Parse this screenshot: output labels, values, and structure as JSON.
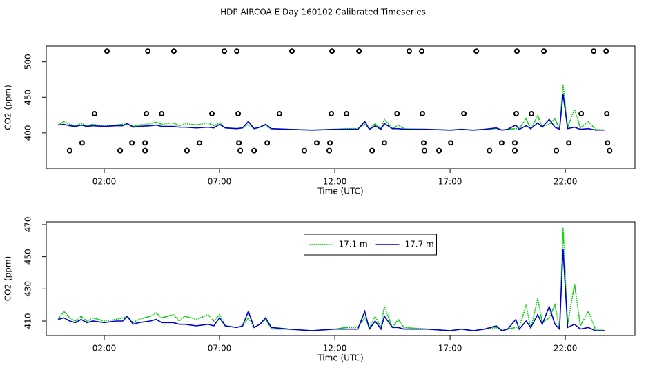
{
  "title": "HDP AIRCOA E  Day 160102  Calibrated Timeseries",
  "chart_data": [
    {
      "type": "line",
      "y_label": "CO2 (ppm)",
      "x_label": "Time (UTC)",
      "xlim": [
        -0.515,
        25.02
      ],
      "ylim": [
        349.5,
        522
      ],
      "xticks": [
        {
          "value": 2,
          "label": "02:00"
        },
        {
          "value": 7,
          "label": "07:00"
        },
        {
          "value": 12,
          "label": "12:00"
        },
        {
          "value": 17,
          "label": "17:00"
        },
        {
          "value": 22,
          "label": "22:00"
        }
      ],
      "yticks": [
        400,
        450,
        500
      ],
      "x": [
        0.0,
        0.25,
        0.5,
        0.75,
        1.0,
        1.25,
        1.5,
        2.0,
        2.5,
        2.8,
        3.0,
        3.25,
        3.5,
        4.0,
        4.25,
        4.5,
        5.0,
        5.25,
        5.5,
        6.0,
        6.5,
        6.75,
        7.0,
        7.25,
        7.75,
        8.0,
        8.25,
        8.5,
        8.75,
        9.0,
        9.25,
        10.0,
        11.0,
        12.0,
        12.5,
        13.0,
        13.3,
        13.5,
        13.75,
        14.0,
        14.15,
        14.5,
        14.75,
        15.0,
        16.0,
        17.0,
        17.5,
        18.0,
        18.5,
        19.0,
        19.25,
        19.5,
        19.85,
        20.0,
        20.3,
        20.5,
        20.8,
        21.0,
        21.3,
        21.55,
        21.75,
        21.9,
        22.1,
        22.4,
        22.65,
        23.0,
        23.3,
        23.7
      ],
      "series": [
        {
          "type": "line",
          "color": "#00cc00",
          "linestyle": "dotted",
          "values": [
            411,
            416,
            412,
            410,
            413,
            410,
            412,
            410,
            411,
            412,
            413,
            409,
            411,
            413,
            415,
            412,
            414,
            410,
            413,
            411,
            414,
            410,
            414,
            407,
            406,
            407,
            412,
            406,
            408,
            411,
            405,
            405,
            404,
            405,
            406,
            406,
            412,
            406,
            413,
            406,
            419,
            406,
            411,
            406,
            405,
            404,
            405,
            404,
            405,
            406,
            404,
            405,
            406,
            406,
            420,
            405,
            424,
            409,
            412,
            420,
            405,
            468,
            408,
            433,
            407,
            416,
            405,
            404
          ]
        },
        {
          "type": "line",
          "color": "#0000cc",
          "linestyle": "solid",
          "values": [
            411,
            412,
            410,
            409,
            411,
            409,
            410,
            409,
            410,
            410,
            413,
            408,
            409,
            410,
            411,
            409,
            409,
            408,
            408,
            407,
            408,
            407,
            412,
            407,
            406,
            407,
            416,
            406,
            408,
            412,
            406,
            405,
            404,
            405,
            405,
            405,
            416,
            405,
            410,
            405,
            413,
            406,
            406,
            405,
            405,
            404,
            405,
            404,
            405,
            407,
            404,
            405,
            411,
            405,
            410,
            406,
            414,
            408,
            419,
            408,
            405,
            455,
            406,
            408,
            405,
            406,
            404,
            404
          ]
        },
        {
          "type": "scatter",
          "color": "#000000",
          "x": [
            2.12,
            3.89,
            5.02,
            7.21,
            7.75,
            10.14,
            11.88,
            13.05,
            15.23,
            15.77,
            18.14,
            19.9,
            21.07,
            23.23,
            23.77,
            1.58,
            3.83,
            4.49,
            6.67,
            7.81,
            9.6,
            11.85,
            12.51,
            14.7,
            15.8,
            17.6,
            19.87,
            20.53,
            22.69,
            23.8,
            1.04,
            3.2,
            3.77,
            6.13,
            7.84,
            9.07,
            11.22,
            11.79,
            14.15,
            15.86,
            17.03,
            19.24,
            19.81,
            22.15,
            23.83,
            0.5,
            2.69,
            3.77,
            5.59,
            7.9,
            8.5,
            10.68,
            11.76,
            13.62,
            15.89,
            16.52,
            18.71,
            19.81,
            21.61,
            23.92
          ],
          "values": [
            515,
            515,
            515,
            515,
            515,
            515,
            515,
            515,
            515,
            515,
            515,
            515,
            515,
            515,
            515,
            427,
            427,
            427,
            427,
            427,
            427,
            427,
            427,
            427,
            427,
            427,
            427,
            427,
            427,
            427,
            386,
            386,
            386,
            386,
            386,
            386,
            386,
            386,
            386,
            386,
            386,
            386,
            386,
            386,
            386,
            375,
            375,
            375,
            375,
            375,
            375,
            375,
            375,
            375,
            375,
            375,
            375,
            375,
            375,
            375
          ]
        }
      ]
    },
    {
      "type": "line",
      "y_label": "CO2 (ppm)",
      "x_label": "Time (UTC)",
      "legend": "top",
      "xlim": [
        -0.515,
        25.02
      ],
      "ylim": [
        401,
        471.7
      ],
      "xticks": [
        {
          "value": 2,
          "label": "02:00"
        },
        {
          "value": 7,
          "label": "07:00"
        },
        {
          "value": 12,
          "label": "12:00"
        },
        {
          "value": 17,
          "label": "17:00"
        },
        {
          "value": 22,
          "label": "22:00"
        }
      ],
      "yticks": [
        410,
        430,
        450,
        470
      ],
      "x": [
        0.0,
        0.25,
        0.5,
        0.75,
        1.0,
        1.25,
        1.5,
        2.0,
        2.5,
        2.8,
        3.0,
        3.25,
        3.5,
        4.0,
        4.25,
        4.5,
        5.0,
        5.25,
        5.5,
        6.0,
        6.5,
        6.75,
        7.0,
        7.25,
        7.75,
        8.0,
        8.25,
        8.5,
        8.75,
        9.0,
        9.25,
        10.0,
        11.0,
        12.0,
        12.5,
        13.0,
        13.3,
        13.5,
        13.75,
        14.0,
        14.15,
        14.5,
        14.75,
        15.0,
        16.0,
        17.0,
        17.5,
        18.0,
        18.5,
        19.0,
        19.25,
        19.5,
        19.85,
        20.0,
        20.3,
        20.5,
        20.8,
        21.0,
        21.3,
        21.55,
        21.75,
        21.9,
        22.1,
        22.4,
        22.65,
        23.0,
        23.3,
        23.7
      ],
      "series": [
        {
          "type": "line",
          "name": "17.1 m",
          "color": "#00cc00",
          "linestyle": "dotted",
          "values": [
            411,
            416,
            412,
            410,
            413,
            410,
            412,
            410,
            411,
            412,
            413,
            409,
            411,
            413,
            415,
            412,
            414,
            410,
            413,
            411,
            414,
            410,
            414,
            407,
            406,
            407,
            412,
            406,
            408,
            411,
            405,
            405,
            404,
            405,
            406,
            406,
            412,
            406,
            413,
            406,
            419,
            406,
            411,
            406,
            405,
            404,
            405,
            404,
            405,
            406,
            404,
            405,
            406,
            406,
            420,
            405,
            424,
            409,
            412,
            420,
            405,
            468,
            408,
            433,
            407,
            416,
            405,
            404
          ]
        },
        {
          "type": "line",
          "name": "17.7 m",
          "color": "#0000cc",
          "linestyle": "solid",
          "values": [
            411,
            412,
            410,
            409,
            411,
            409,
            410,
            409,
            410,
            410,
            413,
            408,
            409,
            410,
            411,
            409,
            409,
            408,
            408,
            407,
            408,
            407,
            412,
            407,
            406,
            407,
            416,
            406,
            408,
            412,
            406,
            405,
            404,
            405,
            405,
            405,
            416,
            405,
            410,
            405,
            413,
            406,
            406,
            405,
            405,
            404,
            405,
            404,
            405,
            407,
            404,
            405,
            411,
            405,
            410,
            406,
            414,
            408,
            419,
            408,
            405,
            455,
            406,
            408,
            405,
            406,
            404,
            404
          ]
        }
      ]
    }
  ]
}
